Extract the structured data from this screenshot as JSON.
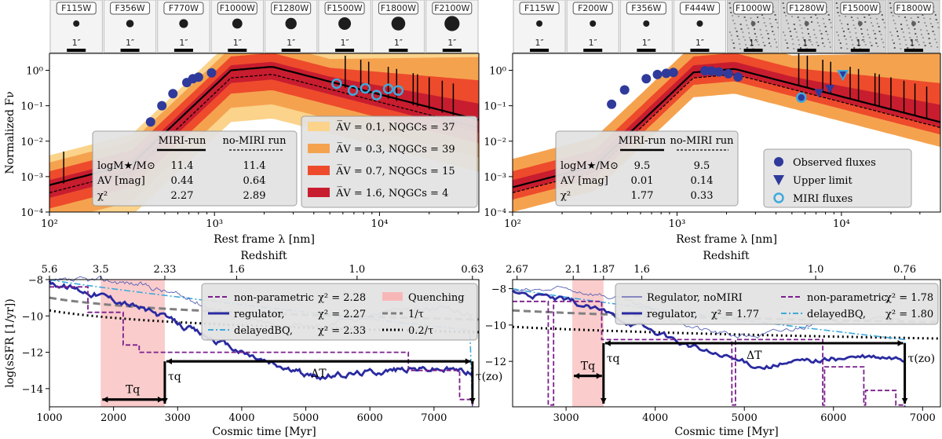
{
  "chart_data": [
    {
      "type": "line",
      "panel": "top-left",
      "title": "",
      "xlabel": "Rest frame λ [nm]",
      "ylabel": "Normalized Fν",
      "xscale": "log",
      "yscale": "log",
      "xlim": [
        100,
        40000
      ],
      "ylim": [
        0.0001,
        3
      ],
      "x_ticks": [
        "10²",
        "10³",
        "10⁴"
      ],
      "y_ticks": [
        "10⁻⁴",
        "10⁻³",
        "10⁻²",
        "10⁻¹",
        "10⁰"
      ],
      "cutout_filters": [
        "F115W",
        "F356W",
        "F770W",
        "F1000W",
        "F1280W",
        "F1500W",
        "F1800W",
        "F2100W"
      ],
      "cutout_scale": "1″",
      "observed_fluxes": {
        "x": [
          410,
          480,
          560,
          680,
          740,
          800,
          960
        ],
        "y": [
          0.035,
          0.1,
          0.22,
          0.45,
          0.58,
          0.64,
          0.85
        ]
      },
      "miri_fluxes": {
        "x": [
          5500,
          6900,
          8200,
          9600,
          11300,
          13000
        ],
        "y": [
          0.42,
          0.27,
          0.31,
          0.2,
          0.3,
          0.27
        ]
      },
      "legend_av": [
        {
          "label": "A̅V = 0.1, NQGCs = 37",
          "color": "#fbd38b"
        },
        {
          "label": "A̅V = 0.3, NQGCs = 39",
          "color": "#f5a24f"
        },
        {
          "label": "A̅V = 0.7, NQGCs = 15",
          "color": "#ed4b2c"
        },
        {
          "label": "A̅V = 1.6, NQGCs = 4",
          "color": "#c81d2f"
        }
      ],
      "table": {
        "col1": "MIRI-run",
        "col2": "no-MIRI run",
        "rows": [
          {
            "label": "logM★/M⊙",
            "v1": "11.4",
            "v2": "11.4"
          },
          {
            "label": "AV [mag]",
            "v1": "0.44",
            "v2": "0.64"
          },
          {
            "label": "χ²",
            "v1": "2.27",
            "v2": "2.89"
          }
        ]
      }
    },
    {
      "type": "line",
      "panel": "top-right",
      "xlabel": "Rest frame λ [nm]",
      "xscale": "log",
      "yscale": "log",
      "xlim": [
        100,
        40000
      ],
      "ylim": [
        0.0001,
        3
      ],
      "x_ticks": [
        "10²",
        "10³",
        "10⁴"
      ],
      "y_ticks": [
        "10⁻⁴",
        "10⁻³",
        "10⁻²",
        "10⁻¹",
        "10⁰"
      ],
      "cutout_filters": [
        "F115W",
        "F200W",
        "F356W",
        "F444W",
        "F1000W",
        "F1280W",
        "F1500W",
        "F1800W"
      ],
      "cutout_scale": "1″",
      "observed_fluxes": {
        "x": [
          400,
          480,
          650,
          760,
          860,
          950,
          1480,
          1620,
          1800,
          2050,
          2350
        ],
        "y": [
          0.11,
          0.28,
          0.58,
          0.76,
          0.82,
          0.87,
          0.97,
          0.96,
          0.9,
          0.8,
          0.65
        ]
      },
      "upper_limits": {
        "x": [
          7300,
          8500,
          10200
        ],
        "y": [
          0.23,
          0.3,
          0.75
        ]
      },
      "miri_fluxes": {
        "x": [
          5700
        ],
        "y": [
          0.17
        ]
      },
      "legend_markers": [
        {
          "label": "Observed fluxes"
        },
        {
          "label": "Upper limit"
        },
        {
          "label": "MIRI fluxes"
        }
      ],
      "table": {
        "col1": "MIRI-run",
        "col2": "no-MIRI run",
        "rows": [
          {
            "label": "logM★/M⊙",
            "v1": "9.5",
            "v2": "9.5"
          },
          {
            "label": "AV [mag]",
            "v1": "0.01",
            "v2": "0.14"
          },
          {
            "label": "χ²",
            "v1": "1.77",
            "v2": "0.33"
          }
        ]
      }
    },
    {
      "type": "line",
      "panel": "bottom-left",
      "xlabel": "Cosmic time [Myr]",
      "ylabel": "log(sSFR [1/yr])",
      "top_xlabel": "Redshift",
      "xlim": [
        1000,
        7700
      ],
      "ylim": [
        -15,
        -8
      ],
      "x_ticks": [
        "1000",
        "2000",
        "3000",
        "4000",
        "5000",
        "6000",
        "7000"
      ],
      "y_ticks": [
        "−14",
        "−12",
        "−10",
        "−8"
      ],
      "redshift_ticks": [
        {
          "label": "5.6",
          "t": 1000
        },
        {
          "label": "3.5",
          "t": 1800
        },
        {
          "label": "2.33",
          "t": 2800
        },
        {
          "label": "1.6",
          "t": 3920
        },
        {
          "label": "1.0",
          "t": 5800
        },
        {
          "label": "0.63",
          "t": 7600
        }
      ],
      "quenching_band": [
        1800,
        2800
      ],
      "series": [
        {
          "name": "non-parametric",
          "chi2": "χ² = 2.28",
          "color": "#7b1f8c"
        },
        {
          "name": "regulator,",
          "chi2": "χ² = 2.27",
          "color": "#2a2aa0"
        },
        {
          "name": "delayedBQ,",
          "chi2": "χ² = 2.33",
          "color": "#3fa9dc"
        },
        {
          "name": "Quenching",
          "color": "#f4a9a9"
        },
        {
          "name": "1/τ",
          "color": "#808080"
        },
        {
          "name": "0.2/τ",
          "color": "#000000"
        }
      ],
      "annotations": [
        "Tq",
        "τq",
        "ΔT",
        "τ(zo)"
      ]
    },
    {
      "type": "line",
      "panel": "bottom-right",
      "xlabel": "Cosmic time [Myr]",
      "top_xlabel": "Redshift",
      "xlim": [
        2400,
        7200
      ],
      "ylim": [
        -14.5,
        -7.5
      ],
      "x_ticks": [
        "3000",
        "4000",
        "5000",
        "6000",
        "7000"
      ],
      "y_ticks": [
        "−12",
        "−10",
        "−8"
      ],
      "redshift_ticks": [
        {
          "label": "2.67",
          "t": 2450
        },
        {
          "label": "2.1",
          "t": 3080
        },
        {
          "label": "1.87",
          "t": 3420
        },
        {
          "label": "1.6",
          "t": 3850
        },
        {
          "label": "1.0",
          "t": 5800
        },
        {
          "label": "0.76",
          "t": 6800
        }
      ],
      "quenching_band": [
        3070,
        3420
      ],
      "series": [
        {
          "name": "Regulator, noMIRI",
          "color": "#2a2aa0"
        },
        {
          "name": "regulator,",
          "chi2": "χ² = 1.77",
          "color": "#2a2aa0"
        },
        {
          "name": "non-parametric,",
          "chi2": "χ² = 1.78",
          "color": "#7b1f8c"
        },
        {
          "name": "delayedBQ,",
          "chi2": "χ² = 1.80",
          "color": "#3fa9dc"
        }
      ],
      "annotations": [
        "Tq",
        "τq",
        "ΔT",
        "τ(zo)"
      ]
    }
  ]
}
